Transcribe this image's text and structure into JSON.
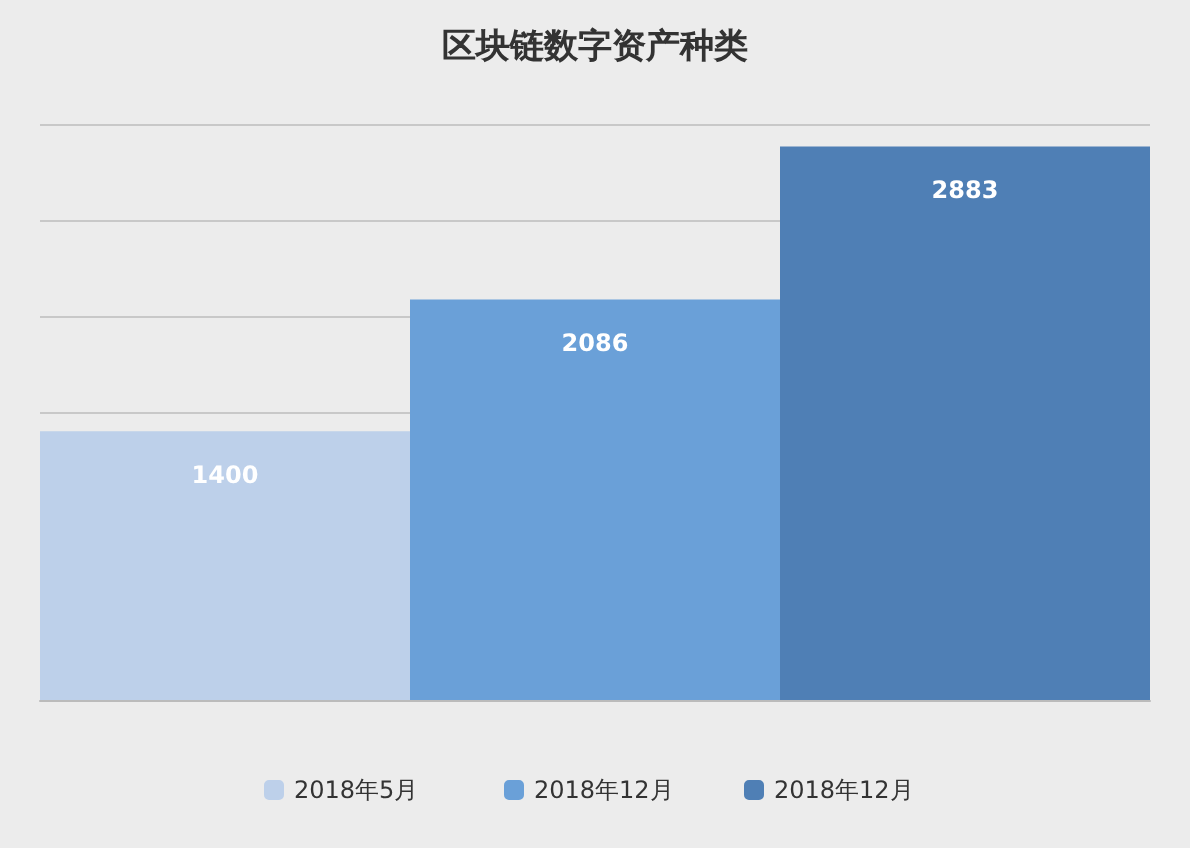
{
  "chart_data": {
    "type": "bar",
    "title": "区块链数字资产种类",
    "categories": [
      null
    ],
    "series": [
      {
        "name": "2018年5月",
        "color": "#bdd0ea",
        "values": [
          1400
        ]
      },
      {
        "name": "2018年12月",
        "color": "#6aa0d8",
        "values": [
          2086
        ]
      },
      {
        "name": "2018年12月",
        "color": "#4f7fb5",
        "values": [
          2883
        ]
      }
    ],
    "grid": "y",
    "legend": "bottom",
    "data_labels": true
  }
}
